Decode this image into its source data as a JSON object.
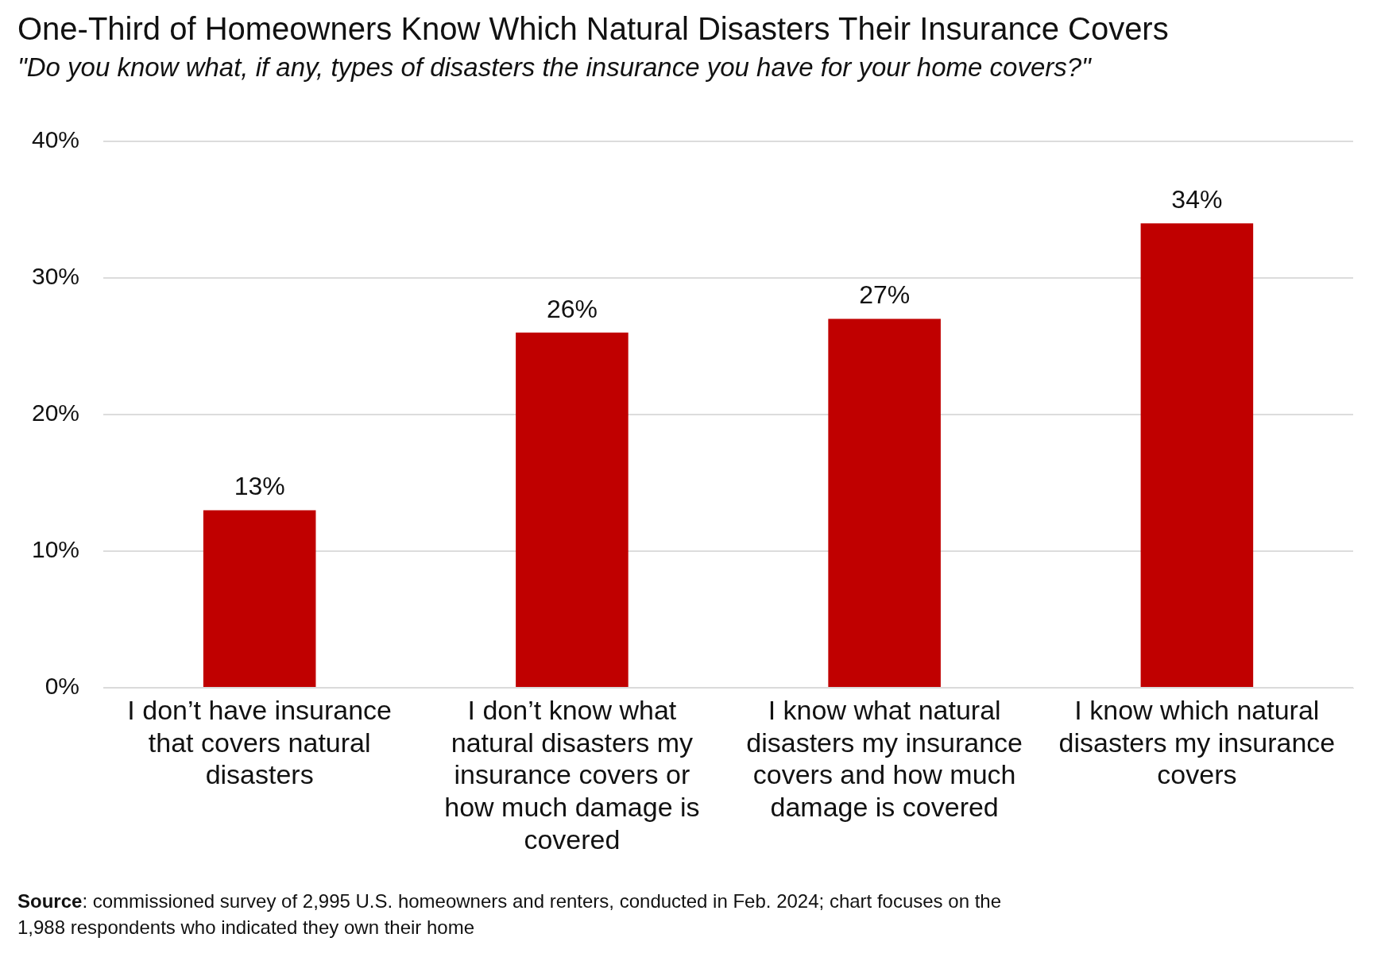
{
  "chart_data": {
    "type": "bar",
    "title": "One-Third of Homeowners Know Which Natural Disasters Their Insurance Covers",
    "subtitle": "\"Do you know what, if any, types of disasters the insurance you have for your home covers?\"",
    "categories": [
      "I don’t have insurance that covers natural disasters",
      "I don’t know what natural disasters my insurance covers or how much damage is covered",
      "I know what natural disasters my insurance covers and how much damage is covered",
      "I know which natural disasters my insurance covers"
    ],
    "values": [
      13,
      26,
      27,
      34
    ],
    "value_labels": [
      "13%",
      "26%",
      "27%",
      "34%"
    ],
    "color": "#c00000",
    "ylim": [
      0,
      40
    ],
    "yticks": [
      {
        "value": 0,
        "label": "0%"
      },
      {
        "value": 10,
        "label": "10%"
      },
      {
        "value": 20,
        "label": "20%"
      },
      {
        "value": 30,
        "label": "30%"
      },
      {
        "value": 40,
        "label": "40%"
      }
    ],
    "grid": "y",
    "legend": false,
    "annotations": [
      "Source: commissioned survey of 2,995 U.S. homeowners and renters, conducted in Feb. 2024; chart focuses on the 1,988 respondents who indicated they own their home"
    ]
  }
}
